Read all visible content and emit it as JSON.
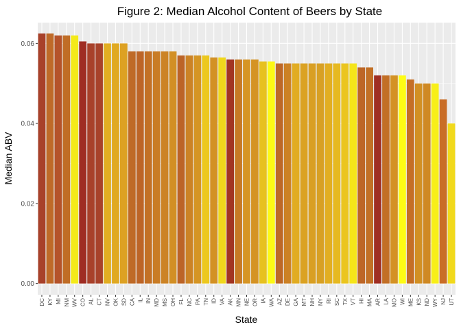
{
  "chart_data": {
    "type": "bar",
    "title": "Figure 2: Median Alcohol Content of Beers by State",
    "xlabel": "State",
    "ylabel": "Median ABV",
    "ylim": [
      -0.0028,
      0.0652
    ],
    "yticks": [
      0.0,
      0.02,
      0.04,
      0.06
    ],
    "ytick_labels": [
      "0.00",
      "0.02",
      "0.04",
      "0.06"
    ],
    "grid": true,
    "legend": "none",
    "background_color": "#ebebeb",
    "categories": [
      "DC",
      "KY",
      "MI",
      "NM",
      "WV",
      "CO",
      "AL",
      "CT",
      "NV",
      "OK",
      "SD",
      "CA",
      "IL",
      "IN",
      "MD",
      "MS",
      "OH",
      "FL",
      "NC",
      "PA",
      "TN",
      "ID",
      "VA",
      "AK",
      "MN",
      "NE",
      "OR",
      "IA",
      "WA",
      "AZ",
      "DE",
      "GA",
      "MT",
      "NH",
      "NY",
      "RI",
      "SC",
      "TX",
      "VT",
      "HI",
      "MA",
      "AR",
      "LA",
      "MO",
      "WI",
      "ME",
      "KS",
      "ND",
      "WY",
      "NJ",
      "UT"
    ],
    "values": [
      0.0625,
      0.0625,
      0.062,
      0.062,
      0.062,
      0.0605,
      0.06,
      0.06,
      0.06,
      0.06,
      0.06,
      0.058,
      0.058,
      0.058,
      0.058,
      0.058,
      0.058,
      0.057,
      0.057,
      0.057,
      0.057,
      0.0565,
      0.0565,
      0.056,
      0.056,
      0.056,
      0.056,
      0.0555,
      0.0555,
      0.055,
      0.055,
      0.055,
      0.055,
      0.055,
      0.055,
      0.055,
      0.055,
      0.055,
      0.055,
      0.054,
      0.054,
      0.052,
      0.052,
      0.052,
      0.052,
      0.051,
      0.05,
      0.05,
      0.05,
      0.046,
      0.04
    ],
    "colors": [
      "#a8412a",
      "#bf6a28",
      "#b5532a",
      "#c06d26",
      "#f4ea1a",
      "#9f2d23",
      "#a8412a",
      "#a8422a",
      "#e2ae22",
      "#e0a922",
      "#dda123",
      "#bf6a27",
      "#bd6527",
      "#c37126",
      "#c97c25",
      "#cc8325",
      "#d28f24",
      "#bc6427",
      "#cc8325",
      "#d59524",
      "#ecc81e",
      "#d39124",
      "#f0d71c",
      "#a23523",
      "#c77a26",
      "#d69525",
      "#d59324",
      "#e7c11f",
      "#fdf915",
      "#be6827",
      "#cc8125",
      "#e1ac22",
      "#dba223",
      "#d99f23",
      "#d8a024",
      "#e2ae22",
      "#e6b921",
      "#ebc51f",
      "#f5e51a",
      "#bd6627",
      "#c27026",
      "#9f2e23",
      "#c26f26",
      "#d49224",
      "#fefc14",
      "#c56f26",
      "#d29024",
      "#cf8924",
      "#f8ef18",
      "#c96d27",
      "#f1d91c"
    ]
  }
}
